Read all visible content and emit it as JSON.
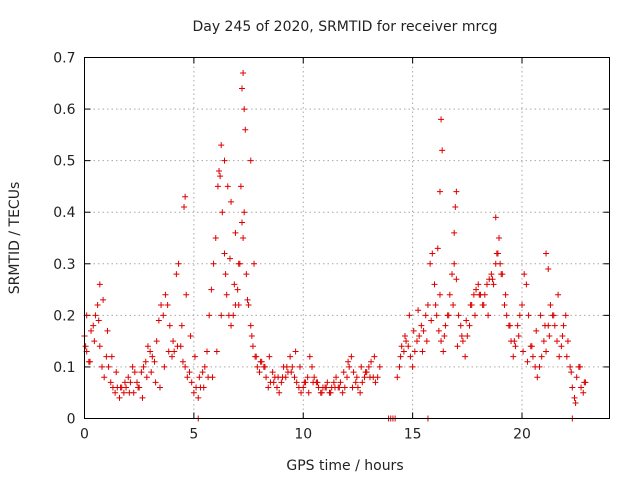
{
  "chart_data": {
    "type": "scatter",
    "title": "Day 245 of 2020, SRMTID for receiver mrcg",
    "xlabel": "GPS time / hours",
    "ylabel": "SRMTID / TECUs",
    "xlim": [
      0,
      24
    ],
    "ylim": [
      0,
      0.7
    ],
    "xticks": [
      0,
      5,
      10,
      15,
      20
    ],
    "yticks": [
      0,
      0.1,
      0.2,
      0.3,
      0.4,
      0.5,
      0.6,
      0.7
    ],
    "grid": true,
    "marker": "plus",
    "color": "#dd0000",
    "series": [
      {
        "name": "SRMTID",
        "x": [
          0.0,
          0.1,
          0.2,
          0.3,
          0.4,
          0.5,
          0.6,
          0.7,
          0.8,
          0.9,
          1.0,
          1.1,
          1.2,
          1.3,
          1.4,
          1.5,
          1.6,
          1.7,
          1.8,
          1.9,
          2.0,
          2.1,
          2.2,
          2.3,
          2.4,
          2.5,
          2.6,
          2.7,
          2.8,
          2.9,
          3.0,
          3.1,
          3.2,
          3.3,
          3.4,
          3.5,
          3.6,
          3.7,
          3.8,
          3.9,
          4.0,
          4.1,
          4.2,
          4.3,
          4.4,
          4.5,
          4.6,
          4.7,
          4.8,
          4.9,
          5.0,
          5.1,
          5.2,
          5.3,
          5.4,
          5.5,
          5.6,
          5.7,
          5.8,
          5.9,
          6.0,
          6.1,
          6.2,
          6.3,
          6.4,
          6.5,
          6.6,
          6.7,
          6.8,
          6.9,
          7.0,
          7.1,
          7.2,
          7.3,
          7.4,
          7.5,
          7.6,
          7.7,
          7.8,
          7.9,
          8.0,
          8.1,
          8.2,
          8.3,
          8.4,
          8.5,
          8.6,
          8.7,
          8.8,
          8.9,
          9.0,
          9.1,
          9.2,
          9.3,
          9.4,
          9.5,
          9.6,
          9.7,
          9.8,
          9.9,
          10.0,
          10.1,
          10.2,
          10.3,
          10.4,
          10.5,
          10.6,
          10.7,
          10.8,
          10.9,
          11.0,
          11.1,
          11.2,
          11.3,
          11.4,
          11.5,
          11.6,
          11.7,
          11.8,
          11.9,
          12.0,
          12.1,
          12.2,
          12.3,
          12.4,
          12.5,
          12.6,
          12.7,
          12.8,
          12.9,
          13.0,
          13.1,
          13.2,
          13.3,
          13.4,
          13.5,
          14.3,
          14.4,
          14.5,
          14.6,
          14.7,
          14.8,
          14.9,
          15.0,
          15.1,
          15.2,
          15.3,
          15.4,
          15.5,
          15.6,
          15.7,
          15.8,
          15.9,
          16.0,
          16.1,
          16.2,
          16.3,
          16.4,
          16.5,
          16.6,
          16.7,
          16.8,
          16.9,
          17.0,
          17.1,
          17.2,
          17.3,
          17.4,
          17.5,
          17.6,
          17.7,
          17.8,
          17.9,
          18.0,
          18.1,
          18.2,
          18.3,
          18.4,
          18.5,
          18.6,
          18.7,
          18.8,
          18.9,
          19.0,
          19.1,
          19.2,
          19.3,
          19.4,
          19.5,
          19.6,
          19.7,
          19.8,
          19.9,
          20.0,
          20.1,
          20.2,
          20.3,
          20.4,
          20.5,
          20.6,
          20.7,
          20.8,
          20.9,
          21.0,
          21.1,
          21.2,
          21.3,
          21.4,
          21.5,
          21.6,
          21.7,
          21.8,
          21.9,
          22.0,
          22.1,
          22.2,
          22.3,
          22.4,
          22.5,
          22.6,
          22.7,
          22.8,
          22.9,
          0.05,
          0.25,
          0.45,
          0.65,
          0.85,
          1.05,
          1.25,
          1.45,
          1.65,
          1.85,
          2.05,
          2.25,
          2.45,
          2.65,
          2.85,
          3.05,
          3.25,
          3.45,
          3.65,
          3.85,
          4.05,
          4.25,
          4.45,
          4.65,
          4.85,
          5.05,
          5.25,
          5.45,
          5.65,
          5.85,
          6.05,
          6.25,
          6.45,
          6.65,
          6.85,
          7.05,
          7.25,
          7.45,
          7.65,
          7.85,
          8.05,
          8.25,
          8.45,
          8.65,
          8.85,
          9.05,
          9.25,
          9.45,
          9.65,
          9.85,
          10.05,
          10.25,
          10.45,
          10.65,
          10.85,
          11.05,
          11.25,
          11.45,
          11.65,
          11.85,
          12.05,
          12.25,
          12.45,
          12.65,
          12.85,
          13.05,
          13.25,
          14.45,
          14.65,
          14.85,
          15.05,
          15.25,
          15.45,
          15.65,
          15.85,
          16.05,
          16.25,
          16.45,
          16.65,
          16.85,
          17.05,
          17.25,
          17.45,
          17.65,
          17.85,
          18.05,
          18.25,
          18.45,
          18.65,
          18.85,
          19.05,
          19.25,
          19.45,
          19.65,
          19.85,
          20.05,
          20.25,
          20.45,
          20.65,
          20.85,
          21.05,
          21.25,
          21.45,
          21.65,
          21.85,
          22.05,
          22.25,
          22.45,
          22.65,
          22.85,
          0.1,
          0.7,
          4.55,
          4.6,
          6.15,
          6.25,
          6.4,
          6.55,
          6.7,
          6.9,
          7.05,
          7.15,
          7.2,
          7.25,
          7.3,
          7.35,
          7.6,
          7.75,
          16.15,
          16.25,
          16.3,
          16.35,
          16.9,
          16.95,
          17.0,
          18.8,
          18.95,
          21.1,
          21.2,
          5.2,
          13.9,
          14.0,
          14.1,
          14.2,
          15.7,
          22.3
        ],
        "y": [
          0.16,
          0.13,
          0.11,
          0.17,
          0.18,
          0.2,
          0.22,
          0.14,
          0.1,
          0.08,
          0.12,
          0.1,
          0.07,
          0.06,
          0.05,
          0.06,
          0.04,
          0.06,
          0.05,
          0.06,
          0.08,
          0.07,
          0.1,
          0.09,
          0.07,
          0.06,
          0.09,
          0.1,
          0.11,
          0.14,
          0.13,
          0.12,
          0.11,
          0.15,
          0.19,
          0.22,
          0.2,
          0.24,
          0.22,
          0.18,
          0.12,
          0.13,
          0.28,
          0.3,
          0.14,
          0.11,
          0.1,
          0.08,
          0.09,
          0.07,
          0.05,
          0.06,
          0.04,
          0.06,
          0.09,
          0.1,
          0.13,
          0.2,
          0.25,
          0.3,
          0.35,
          0.45,
          0.47,
          0.4,
          0.32,
          0.24,
          0.2,
          0.18,
          0.2,
          0.22,
          0.25,
          0.3,
          0.38,
          0.4,
          0.28,
          0.22,
          0.18,
          0.14,
          0.12,
          0.1,
          0.09,
          0.11,
          0.1,
          0.08,
          0.06,
          0.07,
          0.09,
          0.08,
          0.06,
          0.05,
          0.07,
          0.1,
          0.08,
          0.09,
          0.12,
          0.1,
          0.08,
          0.07,
          0.06,
          0.05,
          0.06,
          0.07,
          0.08,
          0.12,
          0.1,
          0.08,
          0.07,
          0.06,
          0.05,
          0.06,
          0.06,
          0.07,
          0.05,
          0.06,
          0.07,
          0.08,
          0.06,
          0.07,
          0.05,
          0.06,
          0.08,
          0.1,
          0.12,
          0.09,
          0.07,
          0.06,
          0.05,
          0.07,
          0.08,
          0.09,
          0.1,
          0.11,
          0.08,
          0.07,
          0.08,
          0.1,
          0.08,
          0.1,
          0.14,
          0.13,
          0.15,
          0.14,
          0.12,
          0.1,
          0.13,
          0.15,
          0.16,
          0.18,
          0.17,
          0.2,
          0.22,
          0.3,
          0.32,
          0.26,
          0.2,
          0.17,
          0.15,
          0.13,
          0.18,
          0.2,
          0.24,
          0.28,
          0.3,
          0.27,
          0.2,
          0.18,
          0.15,
          0.12,
          0.16,
          0.18,
          0.22,
          0.24,
          0.25,
          0.26,
          0.24,
          0.22,
          0.24,
          0.26,
          0.27,
          0.28,
          0.26,
          0.3,
          0.32,
          0.3,
          0.28,
          0.22,
          0.2,
          0.18,
          0.15,
          0.12,
          0.14,
          0.18,
          0.2,
          0.22,
          0.28,
          0.26,
          0.2,
          0.14,
          0.12,
          0.1,
          0.08,
          0.1,
          0.12,
          0.15,
          0.13,
          0.18,
          0.22,
          0.2,
          0.18,
          0.15,
          0.12,
          0.14,
          0.18,
          0.2,
          0.15,
          0.1,
          0.06,
          0.04,
          0.08,
          0.1,
          0.06,
          0.05,
          0.07,
          0.14,
          0.11,
          0.15,
          0.19,
          0.23,
          0.17,
          0.12,
          0.09,
          0.06,
          0.07,
          0.05,
          0.05,
          0.06,
          0.04,
          0.08,
          0.09,
          0.07,
          0.06,
          0.1,
          0.13,
          0.15,
          0.14,
          0.18,
          0.24,
          0.16,
          0.12,
          0.08,
          0.06,
          0.08,
          0.08,
          0.13,
          0.2,
          0.28,
          0.31,
          0.26,
          0.22,
          0.35,
          0.23,
          0.16,
          0.12,
          0.11,
          0.1,
          0.12,
          0.07,
          0.08,
          0.08,
          0.1,
          0.09,
          0.13,
          0.1,
          0.07,
          0.05,
          0.07,
          0.07,
          0.05,
          0.06,
          0.05,
          0.06,
          0.06,
          0.09,
          0.11,
          0.06,
          0.08,
          0.1,
          0.09,
          0.08,
          0.12,
          0.12,
          0.16,
          0.2,
          0.17,
          0.21,
          0.13,
          0.15,
          0.19,
          0.22,
          0.24,
          0.16,
          0.2,
          0.22,
          0.14,
          0.16,
          0.19,
          0.22,
          0.2,
          0.24,
          0.22,
          0.2,
          0.27,
          0.32,
          0.28,
          0.24,
          0.18,
          0.15,
          0.16,
          0.13,
          0.11,
          0.14,
          0.17,
          0.2,
          0.18,
          0.16,
          0.2,
          0.24,
          0.16,
          0.12,
          0.09,
          0.03,
          0.1,
          0.07,
          0.2,
          0.26,
          0.41,
          0.43,
          0.48,
          0.53,
          0.5,
          0.45,
          0.42,
          0.36,
          0.3,
          0.45,
          0.64,
          0.67,
          0.6,
          0.56,
          0.5,
          0.3,
          0.33,
          0.44,
          0.58,
          0.52,
          0.36,
          0.41,
          0.44,
          0.39,
          0.35,
          0.32,
          0.29,
          0.0,
          0.0,
          0.0,
          0.0,
          0.0,
          0.0,
          0.0
        ]
      }
    ]
  }
}
